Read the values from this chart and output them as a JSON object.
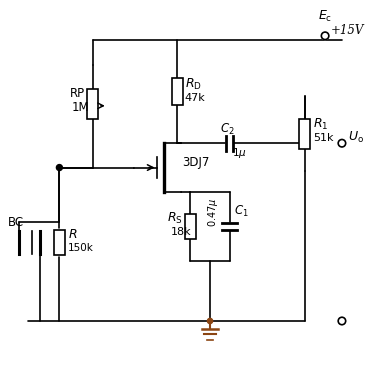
{
  "background": "#ffffff",
  "line_color": "#000000",
  "ground_color": "#8B4513",
  "figsize": [
    3.77,
    3.8
  ],
  "dpi": 100,
  "xlim": [
    0,
    10
  ],
  "ylim": [
    0,
    10
  ]
}
